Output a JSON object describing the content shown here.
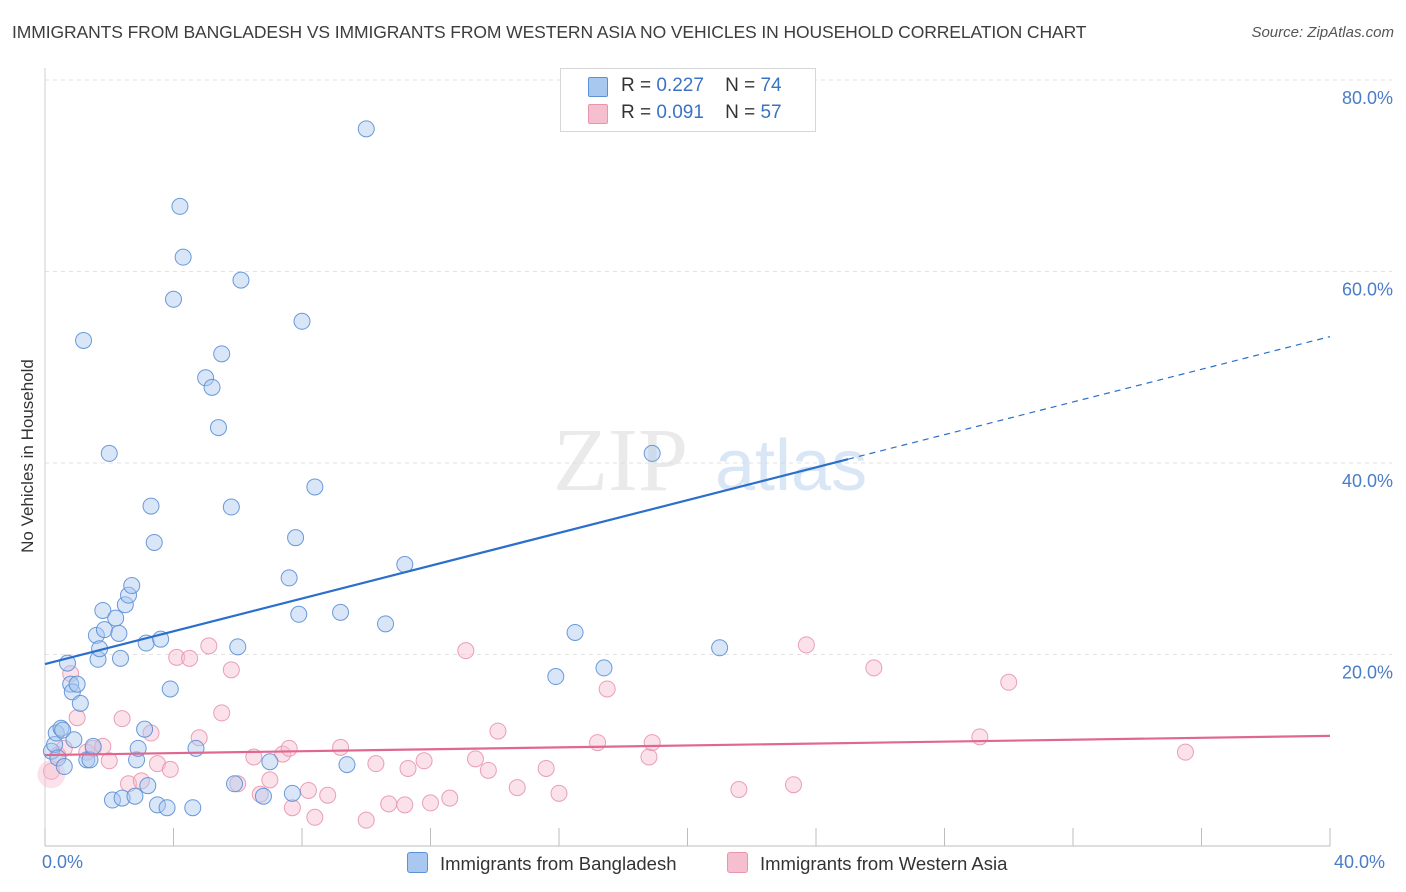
{
  "title": "IMMIGRANTS FROM BANGLADESH VS IMMIGRANTS FROM WESTERN ASIA NO VEHICLES IN HOUSEHOLD CORRELATION CHART",
  "source": "Source: ZipAtlas.com",
  "watermark": {
    "zip": "ZIP",
    "atlas": "atlas"
  },
  "legend": [
    {
      "r_label": "R =",
      "r_value": "0.227",
      "n_label": "N =",
      "n_value": "74"
    },
    {
      "r_label": "R =",
      "r_value": "0.091",
      "n_label": "N =",
      "n_value": "57"
    }
  ],
  "bottom_legend": [
    "Immigrants from Bangladesh",
    "Immigrants from Western Asia"
  ],
  "colors": {
    "blue_fill": "#a8c8ef",
    "blue_stroke": "#5b8fd6",
    "blue_line": "#2b6fcc",
    "pink_fill": "#f6bfd0",
    "pink_stroke": "#e895ae",
    "pink_line": "#e06890",
    "tick_label": "#4a7cc7",
    "grid": "#e2e2e2"
  },
  "chart_data": {
    "type": "scatter",
    "title": "IMMIGRANTS FROM BANGLADESH VS IMMIGRANTS FROM WESTERN ASIA NO VEHICLES IN HOUSEHOLD CORRELATION CHART",
    "xlabel": "",
    "ylabel": "No Vehicles in Household",
    "xlim": [
      0,
      40
    ],
    "ylim": [
      0,
      80
    ],
    "x_tick_labels": [
      "0.0%",
      "40.0%"
    ],
    "y_ticks": [
      20,
      40,
      60,
      80
    ],
    "y_tick_labels": [
      "20.0%",
      "40.0%",
      "60.0%",
      "80.0%"
    ],
    "grid": true,
    "legend_position": "top-center",
    "series": [
      {
        "name": "Immigrants from Bangladesh",
        "color": "#a8c8ef",
        "points": [
          [
            0.2,
            9.9
          ],
          [
            0.3,
            10.6
          ],
          [
            0.35,
            11.8
          ],
          [
            0.4,
            9.2
          ],
          [
            0.5,
            12.3
          ],
          [
            0.55,
            12.1
          ],
          [
            0.6,
            8.3
          ],
          [
            0.7,
            19.1
          ],
          [
            0.8,
            16.9
          ],
          [
            0.85,
            16.1
          ],
          [
            0.9,
            11.1
          ],
          [
            1.0,
            16.9
          ],
          [
            1.1,
            14.9
          ],
          [
            1.2,
            52.8
          ],
          [
            1.3,
            9.0
          ],
          [
            1.4,
            9.0
          ],
          [
            1.5,
            10.4
          ],
          [
            1.6,
            22.0
          ],
          [
            1.65,
            19.5
          ],
          [
            1.7,
            20.6
          ],
          [
            1.8,
            24.6
          ],
          [
            1.85,
            22.6
          ],
          [
            2.0,
            41.0
          ],
          [
            2.1,
            4.8
          ],
          [
            2.2,
            23.8
          ],
          [
            2.3,
            22.2
          ],
          [
            2.35,
            19.6
          ],
          [
            2.4,
            5.0
          ],
          [
            2.5,
            25.2
          ],
          [
            2.6,
            26.2
          ],
          [
            2.7,
            27.2
          ],
          [
            2.8,
            5.2
          ],
          [
            2.85,
            9.0
          ],
          [
            2.9,
            10.2
          ],
          [
            3.1,
            12.2
          ],
          [
            3.15,
            21.2
          ],
          [
            3.2,
            6.3
          ],
          [
            3.3,
            35.5
          ],
          [
            3.4,
            31.7
          ],
          [
            3.5,
            4.3
          ],
          [
            3.6,
            21.6
          ],
          [
            3.8,
            4.0
          ],
          [
            3.9,
            16.4
          ],
          [
            4.0,
            57.1
          ],
          [
            4.2,
            66.8
          ],
          [
            4.3,
            61.5
          ],
          [
            4.6,
            4.0
          ],
          [
            4.7,
            10.2
          ],
          [
            5.0,
            48.9
          ],
          [
            5.2,
            47.9
          ],
          [
            5.4,
            43.7
          ],
          [
            5.5,
            51.4
          ],
          [
            5.8,
            35.4
          ],
          [
            5.9,
            6.5
          ],
          [
            6.0,
            20.8
          ],
          [
            6.1,
            59.1
          ],
          [
            6.8,
            5.2
          ],
          [
            7.0,
            8.8
          ],
          [
            7.6,
            28.0
          ],
          [
            7.7,
            5.5
          ],
          [
            7.8,
            32.2
          ],
          [
            7.9,
            24.2
          ],
          [
            8.0,
            54.8
          ],
          [
            8.4,
            37.5
          ],
          [
            9.2,
            24.4
          ],
          [
            9.4,
            8.5
          ],
          [
            10.0,
            74.9
          ],
          [
            10.6,
            23.2
          ],
          [
            11.2,
            29.4
          ],
          [
            15.9,
            17.7
          ],
          [
            16.5,
            22.3
          ],
          [
            17.4,
            18.6
          ],
          [
            18.9,
            41.0
          ],
          [
            21.0,
            20.7
          ]
        ],
        "trend": {
          "x": [
            0,
            25
          ],
          "y": [
            19.0,
            40.4
          ],
          "dashed_to": [
            40,
            53.2
          ]
        }
      },
      {
        "name": "Immigrants from Western Asia",
        "color": "#f6bfd0",
        "points": [
          [
            0.2,
            7.8
          ],
          [
            0.4,
            9.5
          ],
          [
            0.6,
            10.2
          ],
          [
            0.8,
            18.0
          ],
          [
            1.0,
            13.4
          ],
          [
            1.3,
            9.8
          ],
          [
            1.5,
            10.2
          ],
          [
            1.8,
            10.4
          ],
          [
            2.0,
            8.9
          ],
          [
            2.4,
            13.3
          ],
          [
            2.6,
            6.5
          ],
          [
            3.0,
            6.8
          ],
          [
            3.3,
            11.8
          ],
          [
            3.5,
            8.6
          ],
          [
            3.9,
            8.0
          ],
          [
            4.1,
            19.7
          ],
          [
            4.5,
            19.6
          ],
          [
            4.8,
            11.3
          ],
          [
            5.1,
            20.9
          ],
          [
            5.5,
            13.9
          ],
          [
            5.8,
            18.4
          ],
          [
            6.0,
            6.5
          ],
          [
            6.5,
            9.3
          ],
          [
            6.7,
            5.4
          ],
          [
            7.0,
            6.9
          ],
          [
            7.4,
            9.6
          ],
          [
            7.6,
            10.2
          ],
          [
            7.7,
            4.0
          ],
          [
            8.2,
            5.8
          ],
          [
            8.4,
            3.0
          ],
          [
            8.8,
            5.3
          ],
          [
            9.2,
            10.3
          ],
          [
            10.0,
            2.7
          ],
          [
            10.3,
            8.6
          ],
          [
            10.7,
            4.4
          ],
          [
            11.2,
            4.3
          ],
          [
            11.3,
            8.1
          ],
          [
            11.8,
            8.9
          ],
          [
            12.0,
            4.5
          ],
          [
            12.6,
            5.0
          ],
          [
            13.1,
            20.4
          ],
          [
            13.4,
            9.1
          ],
          [
            13.8,
            7.9
          ],
          [
            14.1,
            12.0
          ],
          [
            14.7,
            6.1
          ],
          [
            15.6,
            8.1
          ],
          [
            16.0,
            5.5
          ],
          [
            17.2,
            10.8
          ],
          [
            17.5,
            16.4
          ],
          [
            18.8,
            9.3
          ],
          [
            18.9,
            10.8
          ],
          [
            21.6,
            5.9
          ],
          [
            23.3,
            6.4
          ],
          [
            23.7,
            21.0
          ],
          [
            25.8,
            18.6
          ],
          [
            29.1,
            11.4
          ],
          [
            30.0,
            17.1
          ],
          [
            35.5,
            9.8
          ]
        ],
        "trend": {
          "x": [
            0,
            40
          ],
          "y": [
            9.5,
            11.5
          ]
        }
      }
    ]
  }
}
